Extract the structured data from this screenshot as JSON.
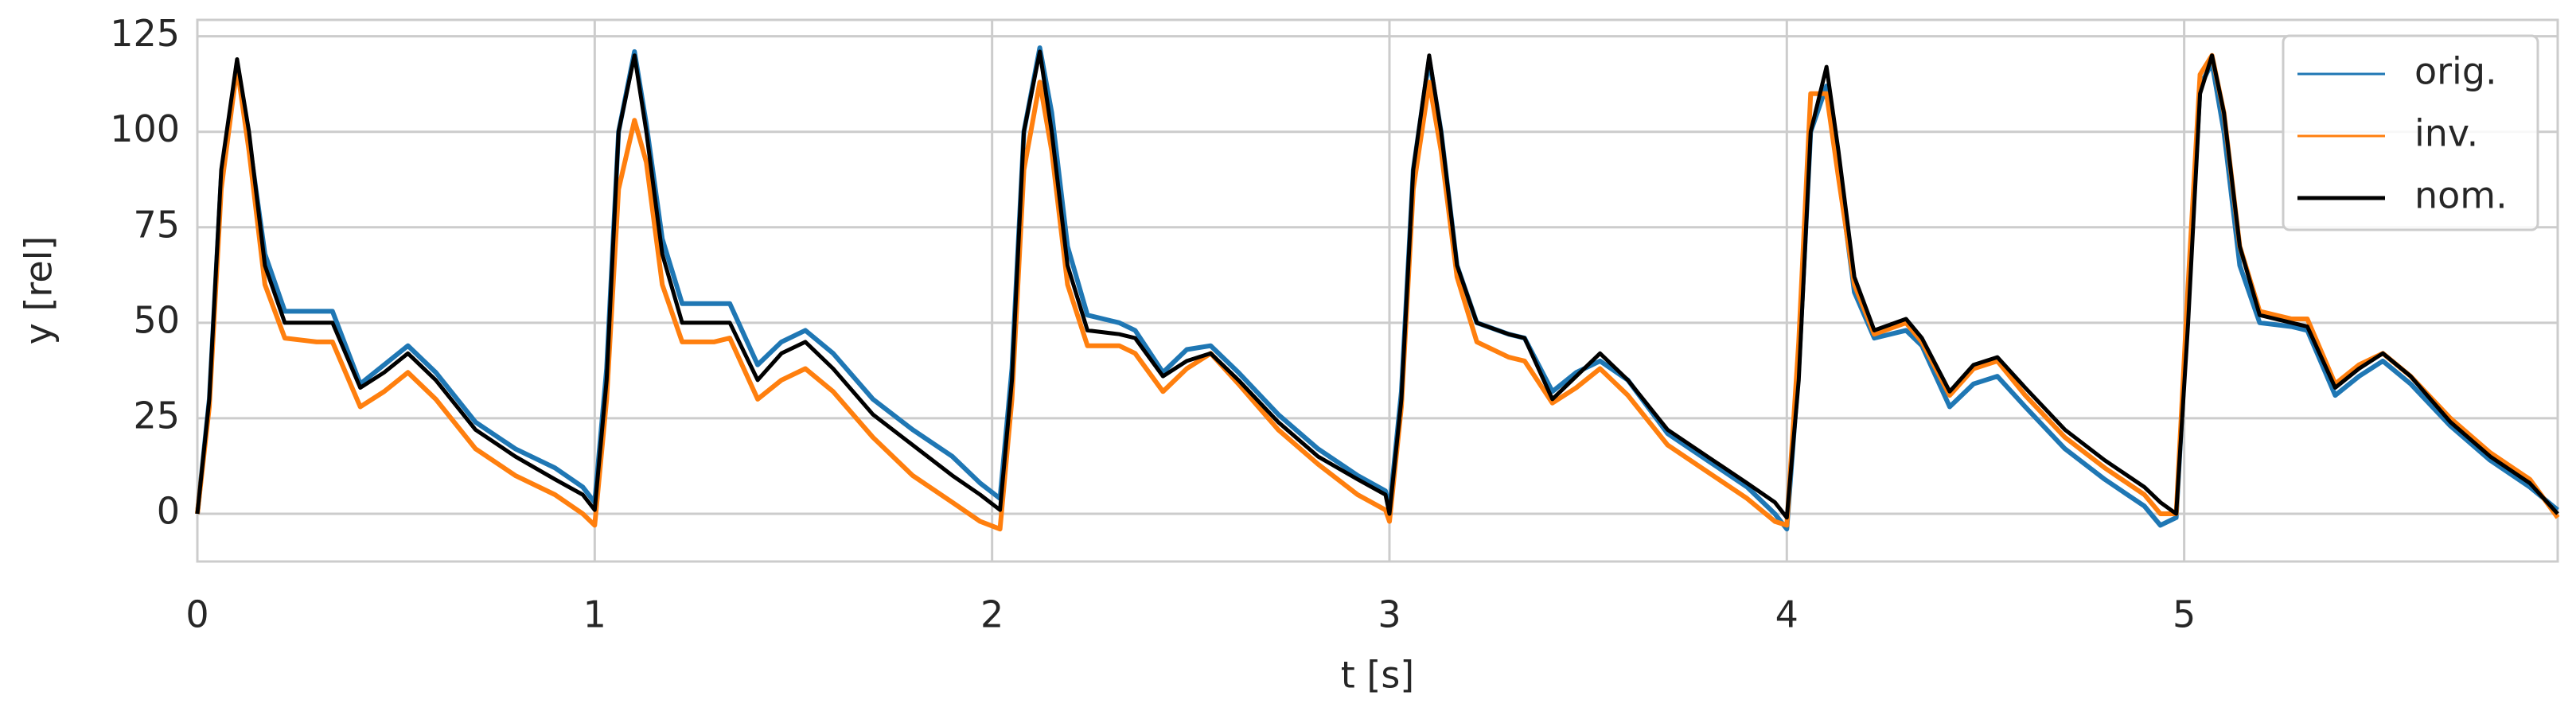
{
  "chart_data": {
    "type": "line",
    "x_label": "t [s]",
    "y_label": "y [rel]",
    "x": [
      0,
      0.03,
      0.06,
      0.1,
      0.13,
      0.17,
      0.22,
      0.3,
      0.34,
      0.41,
      0.47,
      0.53,
      0.6,
      0.7,
      0.8,
      0.9,
      0.97,
      1.0,
      1.03,
      1.06,
      1.1,
      1.13,
      1.17,
      1.22,
      1.3,
      1.34,
      1.41,
      1.47,
      1.53,
      1.6,
      1.7,
      1.8,
      1.9,
      1.97,
      2.02,
      2.05,
      2.08,
      2.12,
      2.15,
      2.19,
      2.24,
      2.32,
      2.36,
      2.43,
      2.49,
      2.55,
      2.62,
      2.72,
      2.82,
      2.92,
      2.99,
      3.0,
      3.03,
      3.06,
      3.1,
      3.13,
      3.17,
      3.22,
      3.3,
      3.34,
      3.41,
      3.47,
      3.53,
      3.6,
      3.7,
      3.8,
      3.9,
      3.97,
      4.0,
      4.03,
      4.06,
      4.1,
      4.13,
      4.17,
      4.22,
      4.3,
      4.34,
      4.41,
      4.47,
      4.53,
      4.6,
      4.7,
      4.8,
      4.9,
      4.94,
      4.98,
      5.01,
      5.04,
      5.07,
      5.1,
      5.14,
      5.19,
      5.27,
      5.31,
      5.38,
      5.44,
      5.5,
      5.57,
      5.67,
      5.77,
      5.87,
      5.94
    ],
    "series": [
      {
        "name": "orig.",
        "color": "#1f77b4",
        "values": [
          0,
          30,
          88,
          118,
          98,
          68,
          53,
          53,
          53,
          34,
          39,
          44,
          37,
          24,
          17,
          12,
          7,
          3,
          38,
          100,
          121,
          102,
          72,
          55,
          55,
          55,
          39,
          45,
          48,
          42,
          30,
          22,
          15,
          8,
          4,
          38,
          100,
          122,
          105,
          70,
          52,
          50,
          48,
          37,
          43,
          44,
          37,
          26,
          17,
          10,
          6,
          1,
          32,
          90,
          119,
          100,
          65,
          50,
          47,
          46,
          32,
          37,
          40,
          35,
          21,
          14,
          7,
          0,
          -4,
          38,
          100,
          112,
          90,
          58,
          46,
          48,
          44,
          28,
          34,
          36,
          28,
          17,
          9,
          2,
          -3,
          -1,
          55,
          112,
          118,
          100,
          65,
          50,
          49,
          48,
          31,
          36,
          40,
          34,
          23,
          14,
          7,
          1
        ]
      },
      {
        "name": "inv.",
        "color": "#ff7f0e",
        "values": [
          0,
          28,
          85,
          117,
          95,
          60,
          46,
          45,
          45,
          28,
          32,
          37,
          30,
          17,
          10,
          5,
          0,
          -3,
          30,
          85,
          103,
          92,
          60,
          45,
          45,
          46,
          30,
          35,
          38,
          32,
          20,
          10,
          3,
          -2,
          -4,
          30,
          90,
          113,
          95,
          60,
          44,
          44,
          42,
          32,
          38,
          42,
          34,
          22,
          13,
          5,
          1,
          -2,
          28,
          85,
          113,
          95,
          62,
          45,
          41,
          40,
          29,
          33,
          38,
          31,
          18,
          11,
          4,
          -2,
          -3,
          45,
          110,
          110,
          88,
          60,
          47,
          50,
          45,
          31,
          38,
          40,
          31,
          20,
          12,
          5,
          0,
          0,
          60,
          115,
          120,
          105,
          70,
          53,
          51,
          51,
          34,
          39,
          42,
          36,
          25,
          16,
          9,
          -1
        ]
      },
      {
        "name": "nom.",
        "color": "#000000",
        "values": [
          0,
          30,
          90,
          119,
          100,
          65,
          50,
          50,
          50,
          33,
          37,
          42,
          35,
          22,
          15,
          9,
          5,
          1,
          35,
          100,
          120,
          100,
          68,
          50,
          50,
          50,
          35,
          42,
          45,
          38,
          26,
          18,
          10,
          5,
          1,
          35,
          100,
          121,
          100,
          65,
          48,
          47,
          46,
          36,
          40,
          42,
          35,
          24,
          15,
          9,
          5,
          0,
          30,
          90,
          120,
          100,
          65,
          50,
          47,
          46,
          30,
          36,
          42,
          35,
          22,
          15,
          8,
          3,
          -1,
          35,
          100,
          117,
          95,
          62,
          48,
          51,
          46,
          32,
          39,
          41,
          33,
          22,
          14,
          7,
          3,
          0,
          50,
          110,
          120,
          105,
          70,
          52,
          50,
          49,
          33,
          38,
          42,
          36,
          24,
          15,
          8,
          0
        ]
      }
    ],
    "xlim": [
      0,
      5.94
    ],
    "ylim": [
      -12.5,
      129.3
    ],
    "xticks": [
      0,
      1,
      2,
      3,
      4,
      5
    ],
    "yticks": [
      0,
      25,
      50,
      75,
      100,
      125
    ],
    "grid": true,
    "legend": "upper right"
  }
}
